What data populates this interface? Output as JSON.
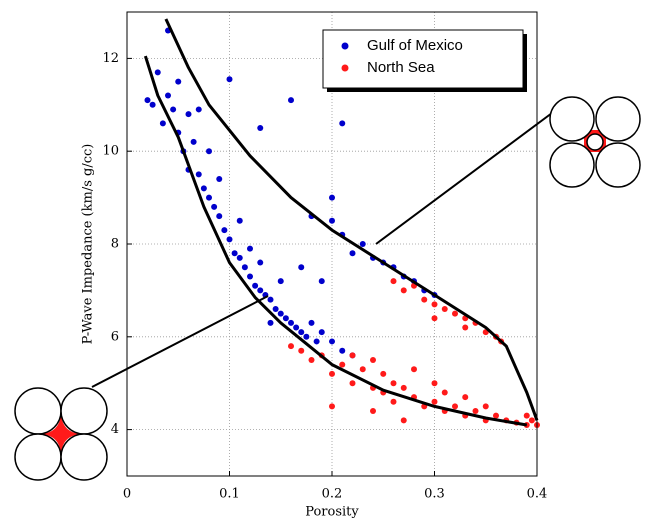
{
  "chart_data": {
    "type": "scatter",
    "x_label": "Porosity",
    "y_label": "P-Wave Impedance (km/s g/cc)",
    "xlim": [
      0,
      0.4
    ],
    "xticks": [
      0,
      0.1,
      0.2,
      0.3,
      0.4
    ],
    "ylim": [
      3,
      13
    ],
    "yticks": [
      4,
      6,
      8,
      10,
      12
    ],
    "grid": true,
    "legend": "upper right",
    "series": [
      {
        "name": "Gulf of Mexico",
        "color": "#0000cc",
        "x": [
          0.02,
          0.025,
          0.03,
          0.035,
          0.04,
          0.04,
          0.045,
          0.05,
          0.05,
          0.055,
          0.06,
          0.06,
          0.065,
          0.07,
          0.07,
          0.075,
          0.08,
          0.08,
          0.085,
          0.09,
          0.09,
          0.095,
          0.1,
          0.1,
          0.105,
          0.11,
          0.11,
          0.115,
          0.12,
          0.12,
          0.125,
          0.13,
          0.13,
          0.135,
          0.14,
          0.14,
          0.145,
          0.15,
          0.15,
          0.155,
          0.16,
          0.16,
          0.165,
          0.17,
          0.17,
          0.175,
          0.18,
          0.185,
          0.19,
          0.19,
          0.2,
          0.2,
          0.21,
          0.21,
          0.22,
          0.22,
          0.23,
          0.24,
          0.25,
          0.26,
          0.27,
          0.28,
          0.29,
          0.3,
          0.18,
          0.21,
          0.2,
          0.13
        ],
        "values": [
          11.1,
          11.0,
          11.7,
          10.6,
          11.2,
          12.6,
          10.9,
          10.4,
          11.5,
          10.0,
          10.8,
          9.6,
          10.2,
          9.5,
          10.9,
          9.2,
          9.0,
          10.0,
          8.8,
          8.6,
          9.4,
          8.3,
          8.1,
          11.55,
          7.8,
          7.7,
          8.5,
          7.5,
          7.3,
          7.9,
          7.1,
          7.0,
          7.6,
          6.9,
          6.8,
          6.3,
          6.6,
          6.5,
          7.2,
          6.4,
          6.3,
          11.1,
          6.2,
          6.1,
          7.5,
          6.0,
          6.3,
          5.9,
          6.1,
          7.2,
          5.9,
          8.5,
          5.7,
          8.2,
          7.8,
          5.6,
          8.0,
          7.7,
          7.6,
          7.5,
          7.3,
          7.2,
          7.0,
          6.9,
          8.6,
          10.6,
          9.0,
          10.5
        ]
      },
      {
        "name": "North Sea",
        "color": "#ff1a1a",
        "x": [
          0.16,
          0.17,
          0.18,
          0.19,
          0.2,
          0.21,
          0.22,
          0.22,
          0.23,
          0.24,
          0.24,
          0.25,
          0.25,
          0.26,
          0.26,
          0.27,
          0.28,
          0.28,
          0.29,
          0.3,
          0.3,
          0.31,
          0.31,
          0.32,
          0.33,
          0.33,
          0.34,
          0.35,
          0.35,
          0.36,
          0.37,
          0.38,
          0.39,
          0.395,
          0.4,
          0.39,
          0.2,
          0.24,
          0.27,
          0.26,
          0.27,
          0.28,
          0.29,
          0.3,
          0.31,
          0.32,
          0.33,
          0.34,
          0.35,
          0.36,
          0.365,
          0.3,
          0.33
        ],
        "values": [
          5.8,
          5.7,
          5.5,
          5.6,
          5.2,
          5.4,
          5.0,
          5.6,
          5.3,
          4.9,
          5.5,
          4.8,
          5.2,
          5.0,
          4.6,
          4.9,
          4.7,
          5.3,
          4.5,
          4.6,
          5.0,
          4.4,
          4.8,
          4.5,
          4.3,
          4.7,
          4.4,
          4.2,
          4.5,
          4.3,
          4.2,
          4.15,
          4.1,
          4.2,
          4.1,
          4.3,
          4.5,
          4.4,
          4.2,
          7.2,
          7.0,
          7.1,
          6.8,
          6.7,
          6.6,
          6.5,
          6.4,
          6.3,
          6.1,
          6.0,
          5.9,
          6.4,
          6.2
        ]
      }
    ],
    "curves": [
      {
        "color": "#000000",
        "x": [
          0.018,
          0.03,
          0.05,
          0.075,
          0.1,
          0.125,
          0.15,
          0.2,
          0.25,
          0.3,
          0.35,
          0.39
        ],
        "values": [
          12.05,
          11.2,
          10.3,
          8.8,
          7.6,
          6.85,
          6.3,
          5.4,
          4.85,
          4.5,
          4.25,
          4.1
        ]
      },
      {
        "color": "#000000",
        "x": [
          0.038,
          0.06,
          0.08,
          0.12,
          0.16,
          0.2,
          0.25,
          0.3,
          0.35,
          0.37,
          0.38,
          0.39,
          0.4
        ],
        "values": [
          12.85,
          11.8,
          11.0,
          9.9,
          9.0,
          8.3,
          7.6,
          6.9,
          6.2,
          5.8,
          5.3,
          4.8,
          4.2
        ]
      }
    ]
  }
}
